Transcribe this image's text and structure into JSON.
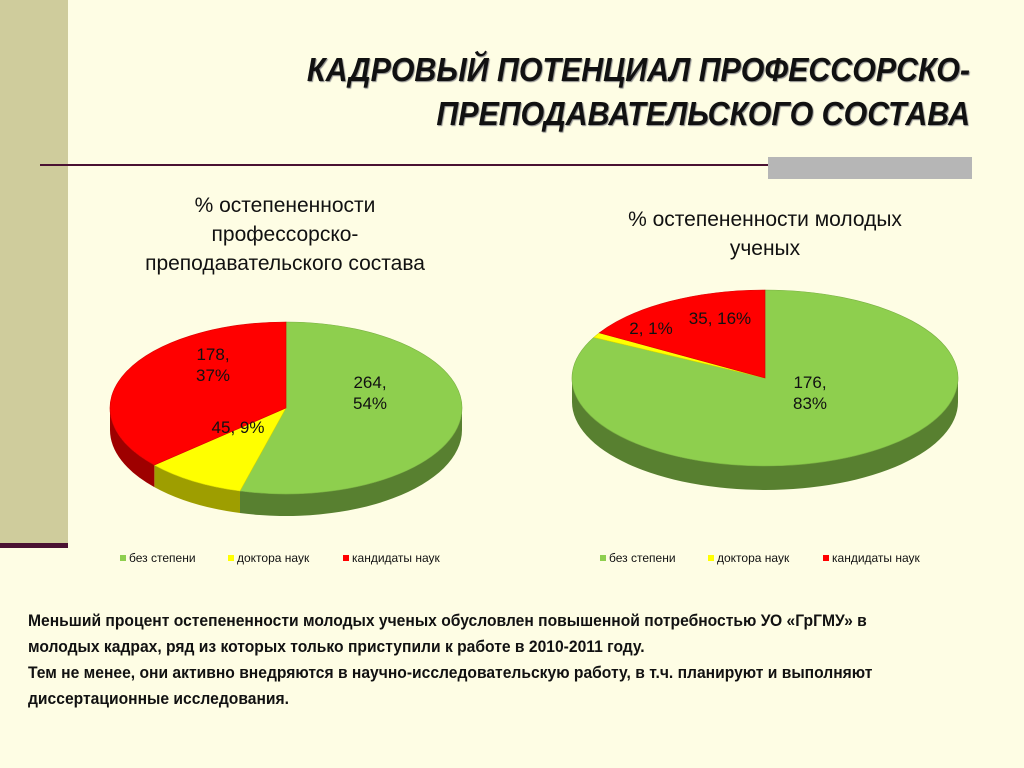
{
  "header": {
    "title_line1": "КАДРОВЫЙ ПОТЕНЦИАЛ ПРОФЕССОРСКО-",
    "title_line2": "ПРЕПОДАВАТЕЛЬСКОГО СОСТАВА"
  },
  "colors": {
    "no_degree": "#8ecf4e",
    "doctors": "#ffff00",
    "candidates": "#ff0000"
  },
  "chart_data": [
    {
      "type": "pie",
      "title": "% остепененности профессорско-преподавательского состава",
      "legend_placement": "bottom",
      "categories": [
        "без степени",
        "доктора наук",
        "кандидаты наук"
      ],
      "values": [
        264,
        45,
        178
      ],
      "percents": [
        54,
        9,
        37
      ],
      "data_labels": [
        "264, 54%",
        "45, 9%",
        "178, 37%"
      ]
    },
    {
      "type": "pie",
      "title": "% остепененности молодых ученых",
      "legend_placement": "bottom",
      "categories": [
        "без степени",
        "доктора наук",
        "кандидаты наук"
      ],
      "values": [
        176,
        2,
        35
      ],
      "percents": [
        83,
        1,
        16
      ],
      "data_labels": [
        "176, 83%",
        "2, 1%",
        "35, 16%"
      ]
    }
  ],
  "note": {
    "line1": "Меньший процент остепененности молодых ученых обусловлен повышенной потребностью УО «ГрГМУ» в молодых кадрах, ряд из которых только приступили к работе в 2010-2011 году.",
    "line2": "Тем не менее, они активно внедряются в научно-исследовательскую работу, в т.ч. планируют и выполняют диссертационные исследования."
  }
}
